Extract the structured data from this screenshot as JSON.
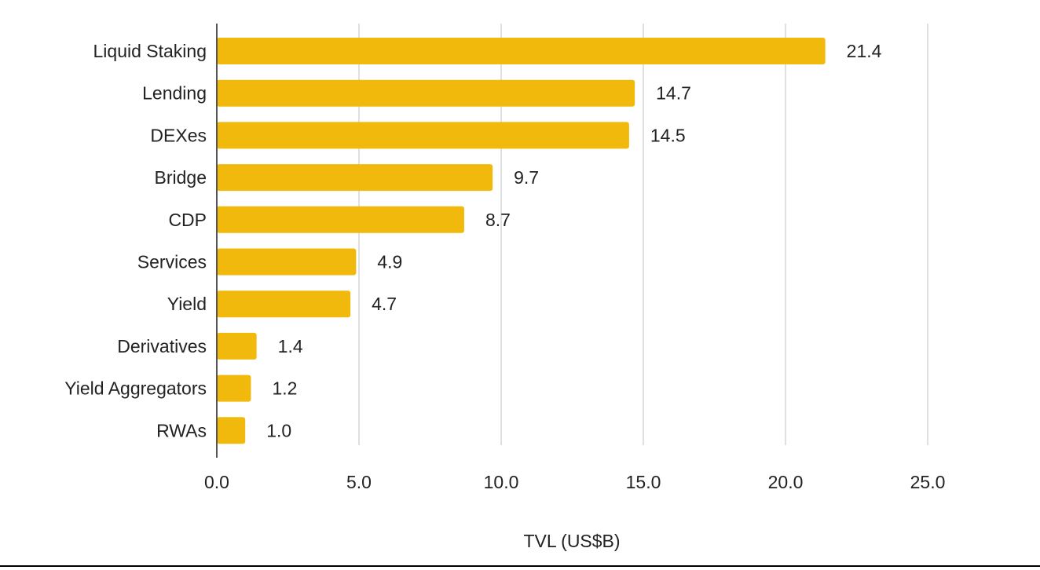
{
  "chart_data": {
    "type": "bar",
    "orientation": "horizontal",
    "title": "",
    "xlabel": "TVL (US$B)",
    "ylabel": "",
    "categories": [
      "Liquid Staking",
      "Lending",
      "DEXes",
      "Bridge",
      "CDP",
      "Services",
      "Yield",
      "Derivatives",
      "Yield Aggregators",
      "RWAs"
    ],
    "values": [
      21.4,
      14.7,
      14.5,
      9.7,
      8.7,
      4.9,
      4.7,
      1.4,
      1.2,
      1.0
    ],
    "value_labels": [
      "21.4",
      "14.7",
      "14.5",
      "9.7",
      "8.7",
      "4.9",
      "4.7",
      "1.4",
      "1.2",
      "1.0"
    ],
    "xlim": [
      0,
      25
    ],
    "xticks": [
      0,
      5,
      10,
      15,
      20,
      25
    ],
    "xtick_labels": [
      "0.0",
      "5.0",
      "10.0",
      "15.0",
      "20.0",
      "25.0"
    ],
    "grid": true,
    "legend": "none",
    "bar_color": "#f1b90c"
  }
}
